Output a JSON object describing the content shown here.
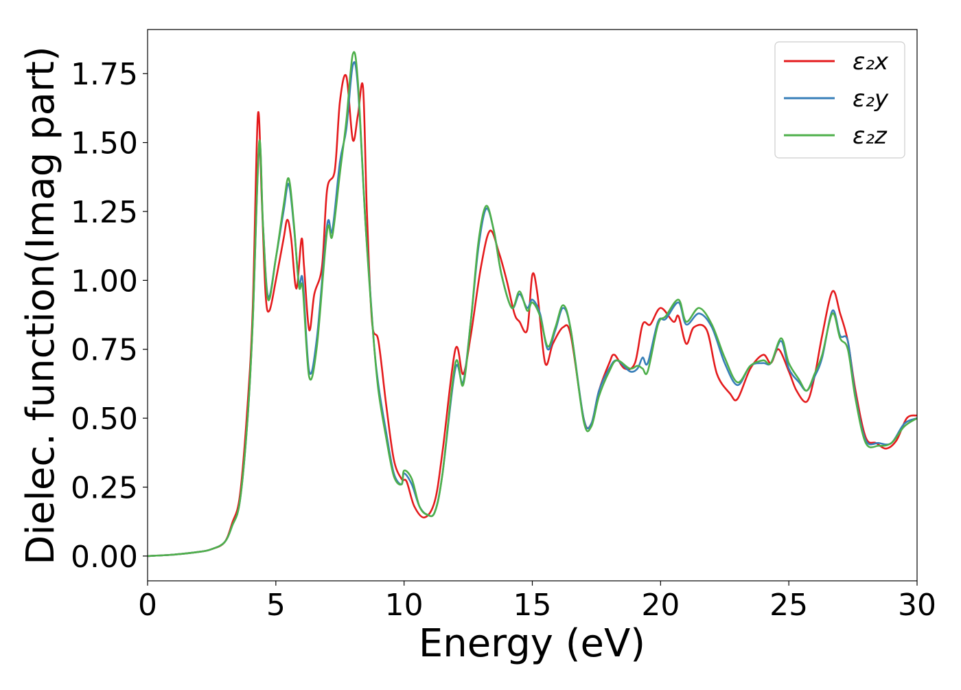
{
  "chart_data": {
    "type": "line",
    "xlabel": "Energy (eV)",
    "ylabel": "Dielec. function(Imag part)",
    "xlim": [
      0,
      30
    ],
    "ylim": [
      -0.09,
      1.91
    ],
    "xticks": [
      "0",
      "5",
      "10",
      "15",
      "20",
      "25",
      "30"
    ],
    "yticks": [
      "0.00",
      "0.25",
      "0.50",
      "0.75",
      "1.00",
      "1.25",
      "1.50",
      "1.75"
    ],
    "grid": false,
    "legend_position": "top-right",
    "series": [
      {
        "name": "ε₂x",
        "color": "#e41a1c",
        "points": [
          [
            0,
            0.0
          ],
          [
            1,
            0.005
          ],
          [
            2,
            0.015
          ],
          [
            2.5,
            0.025
          ],
          [
            3,
            0.05
          ],
          [
            3.3,
            0.12
          ],
          [
            3.6,
            0.22
          ],
          [
            3.9,
            0.55
          ],
          [
            4.1,
            0.9
          ],
          [
            4.3,
            1.6
          ],
          [
            4.45,
            1.3
          ],
          [
            4.6,
            0.95
          ],
          [
            4.75,
            0.89
          ],
          [
            5.0,
            1.0
          ],
          [
            5.3,
            1.15
          ],
          [
            5.45,
            1.22
          ],
          [
            5.6,
            1.15
          ],
          [
            5.8,
            0.97
          ],
          [
            6.0,
            1.15
          ],
          [
            6.1,
            1.05
          ],
          [
            6.3,
            0.82
          ],
          [
            6.5,
            0.95
          ],
          [
            6.8,
            1.05
          ],
          [
            7.0,
            1.33
          ],
          [
            7.3,
            1.4
          ],
          [
            7.5,
            1.65
          ],
          [
            7.75,
            1.74
          ],
          [
            8.0,
            1.51
          ],
          [
            8.2,
            1.6
          ],
          [
            8.4,
            1.7
          ],
          [
            8.55,
            1.25
          ],
          [
            8.75,
            0.85
          ],
          [
            9.0,
            0.78
          ],
          [
            9.3,
            0.55
          ],
          [
            9.6,
            0.35
          ],
          [
            9.9,
            0.28
          ],
          [
            10.1,
            0.27
          ],
          [
            10.4,
            0.18
          ],
          [
            10.8,
            0.14
          ],
          [
            11.2,
            0.2
          ],
          [
            11.5,
            0.38
          ],
          [
            12.0,
            0.75
          ],
          [
            12.3,
            0.66
          ],
          [
            12.6,
            0.8
          ],
          [
            13.0,
            1.05
          ],
          [
            13.35,
            1.18
          ],
          [
            13.7,
            1.1
          ],
          [
            14.0,
            1.0
          ],
          [
            14.3,
            0.88
          ],
          [
            14.5,
            0.85
          ],
          [
            14.8,
            0.82
          ],
          [
            15.0,
            1.02
          ],
          [
            15.2,
            0.95
          ],
          [
            15.5,
            0.7
          ],
          [
            15.8,
            0.77
          ],
          [
            16.2,
            0.83
          ],
          [
            16.5,
            0.8
          ],
          [
            17.0,
            0.5
          ],
          [
            17.3,
            0.48
          ],
          [
            17.6,
            0.6
          ],
          [
            18.0,
            0.7
          ],
          [
            18.2,
            0.73
          ],
          [
            18.6,
            0.68
          ],
          [
            19.0,
            0.7
          ],
          [
            19.3,
            0.84
          ],
          [
            19.6,
            0.84
          ],
          [
            20.0,
            0.9
          ],
          [
            20.5,
            0.85
          ],
          [
            20.7,
            0.87
          ],
          [
            21.0,
            0.77
          ],
          [
            21.3,
            0.83
          ],
          [
            21.8,
            0.82
          ],
          [
            22.2,
            0.66
          ],
          [
            22.7,
            0.59
          ],
          [
            23.0,
            0.57
          ],
          [
            23.5,
            0.68
          ],
          [
            24.0,
            0.73
          ],
          [
            24.3,
            0.7
          ],
          [
            24.6,
            0.75
          ],
          [
            25.0,
            0.67
          ],
          [
            25.3,
            0.6
          ],
          [
            25.7,
            0.56
          ],
          [
            26.0,
            0.65
          ],
          [
            26.3,
            0.8
          ],
          [
            26.7,
            0.96
          ],
          [
            27.0,
            0.88
          ],
          [
            27.3,
            0.78
          ],
          [
            27.6,
            0.6
          ],
          [
            28.0,
            0.43
          ],
          [
            28.4,
            0.41
          ],
          [
            28.8,
            0.39
          ],
          [
            29.2,
            0.42
          ],
          [
            29.6,
            0.5
          ],
          [
            30.0,
            0.51
          ]
        ]
      },
      {
        "name": "ε₂y",
        "color": "#377eb8",
        "points": [
          [
            0,
            0.0
          ],
          [
            1,
            0.005
          ],
          [
            2,
            0.015
          ],
          [
            2.5,
            0.025
          ],
          [
            3,
            0.05
          ],
          [
            3.3,
            0.11
          ],
          [
            3.6,
            0.2
          ],
          [
            3.9,
            0.5
          ],
          [
            4.1,
            0.85
          ],
          [
            4.35,
            1.49
          ],
          [
            4.5,
            1.2
          ],
          [
            4.7,
            0.94
          ],
          [
            5.0,
            1.08
          ],
          [
            5.3,
            1.25
          ],
          [
            5.5,
            1.35
          ],
          [
            5.7,
            1.2
          ],
          [
            5.9,
            0.99
          ],
          [
            6.05,
            1.0
          ],
          [
            6.3,
            0.67
          ],
          [
            6.6,
            0.79
          ],
          [
            7.0,
            1.2
          ],
          [
            7.2,
            1.18
          ],
          [
            7.5,
            1.43
          ],
          [
            7.75,
            1.55
          ],
          [
            8.0,
            1.78
          ],
          [
            8.2,
            1.7
          ],
          [
            8.5,
            1.2
          ],
          [
            8.8,
            0.8
          ],
          [
            9.0,
            0.62
          ],
          [
            9.3,
            0.45
          ],
          [
            9.6,
            0.3
          ],
          [
            9.9,
            0.26
          ],
          [
            10.0,
            0.3
          ],
          [
            10.3,
            0.26
          ],
          [
            10.6,
            0.18
          ],
          [
            10.9,
            0.15
          ],
          [
            11.2,
            0.16
          ],
          [
            11.5,
            0.3
          ],
          [
            12.0,
            0.68
          ],
          [
            12.3,
            0.63
          ],
          [
            12.6,
            0.85
          ],
          [
            12.9,
            1.12
          ],
          [
            13.2,
            1.26
          ],
          [
            13.5,
            1.18
          ],
          [
            13.8,
            1.02
          ],
          [
            14.2,
            0.9
          ],
          [
            14.5,
            0.95
          ],
          [
            14.8,
            0.9
          ],
          [
            15.0,
            0.93
          ],
          [
            15.3,
            0.88
          ],
          [
            15.6,
            0.75
          ],
          [
            15.9,
            0.82
          ],
          [
            16.2,
            0.9
          ],
          [
            16.5,
            0.82
          ],
          [
            17.0,
            0.5
          ],
          [
            17.3,
            0.48
          ],
          [
            17.6,
            0.6
          ],
          [
            18.0,
            0.68
          ],
          [
            18.3,
            0.71
          ],
          [
            18.8,
            0.67
          ],
          [
            19.1,
            0.68
          ],
          [
            19.3,
            0.72
          ],
          [
            19.5,
            0.7
          ],
          [
            19.9,
            0.85
          ],
          [
            20.2,
            0.86
          ],
          [
            20.7,
            0.92
          ],
          [
            21.0,
            0.84
          ],
          [
            21.5,
            0.88
          ],
          [
            22.0,
            0.83
          ],
          [
            22.5,
            0.7
          ],
          [
            23.0,
            0.62
          ],
          [
            23.5,
            0.69
          ],
          [
            24.0,
            0.7
          ],
          [
            24.3,
            0.7
          ],
          [
            24.7,
            0.78
          ],
          [
            25.0,
            0.68
          ],
          [
            25.4,
            0.63
          ],
          [
            25.7,
            0.6
          ],
          [
            26.0,
            0.65
          ],
          [
            26.3,
            0.72
          ],
          [
            26.7,
            0.89
          ],
          [
            27.0,
            0.8
          ],
          [
            27.3,
            0.78
          ],
          [
            27.6,
            0.58
          ],
          [
            28.0,
            0.42
          ],
          [
            28.5,
            0.41
          ],
          [
            29.0,
            0.41
          ],
          [
            29.5,
            0.48
          ],
          [
            30.0,
            0.5
          ]
        ]
      },
      {
        "name": "ε₂z",
        "color": "#4daf4a",
        "points": [
          [
            0,
            0.0
          ],
          [
            1,
            0.005
          ],
          [
            2,
            0.015
          ],
          [
            2.5,
            0.025
          ],
          [
            3,
            0.05
          ],
          [
            3.3,
            0.11
          ],
          [
            3.6,
            0.2
          ],
          [
            3.9,
            0.5
          ],
          [
            4.1,
            0.85
          ],
          [
            4.35,
            1.5
          ],
          [
            4.5,
            1.2
          ],
          [
            4.7,
            0.93
          ],
          [
            5.0,
            1.08
          ],
          [
            5.3,
            1.27
          ],
          [
            5.5,
            1.37
          ],
          [
            5.7,
            1.21
          ],
          [
            5.9,
            0.98
          ],
          [
            6.05,
            0.97
          ],
          [
            6.3,
            0.65
          ],
          [
            6.6,
            0.76
          ],
          [
            7.0,
            1.18
          ],
          [
            7.2,
            1.16
          ],
          [
            7.5,
            1.39
          ],
          [
            7.75,
            1.58
          ],
          [
            8.0,
            1.82
          ],
          [
            8.2,
            1.72
          ],
          [
            8.5,
            1.2
          ],
          [
            8.8,
            0.8
          ],
          [
            9.0,
            0.6
          ],
          [
            9.3,
            0.43
          ],
          [
            9.6,
            0.29
          ],
          [
            9.9,
            0.26
          ],
          [
            10.0,
            0.31
          ],
          [
            10.3,
            0.28
          ],
          [
            10.6,
            0.18
          ],
          [
            10.9,
            0.15
          ],
          [
            11.2,
            0.16
          ],
          [
            11.5,
            0.3
          ],
          [
            12.0,
            0.7
          ],
          [
            12.3,
            0.62
          ],
          [
            12.6,
            0.85
          ],
          [
            12.9,
            1.14
          ],
          [
            13.2,
            1.27
          ],
          [
            13.5,
            1.18
          ],
          [
            13.8,
            1.02
          ],
          [
            14.2,
            0.9
          ],
          [
            14.5,
            0.96
          ],
          [
            14.8,
            0.89
          ],
          [
            15.0,
            0.92
          ],
          [
            15.3,
            0.87
          ],
          [
            15.6,
            0.76
          ],
          [
            15.9,
            0.83
          ],
          [
            16.2,
            0.91
          ],
          [
            16.5,
            0.82
          ],
          [
            17.0,
            0.49
          ],
          [
            17.3,
            0.47
          ],
          [
            17.6,
            0.58
          ],
          [
            18.0,
            0.67
          ],
          [
            18.3,
            0.71
          ],
          [
            18.8,
            0.68
          ],
          [
            19.1,
            0.69
          ],
          [
            19.3,
            0.68
          ],
          [
            19.5,
            0.67
          ],
          [
            19.9,
            0.84
          ],
          [
            20.2,
            0.87
          ],
          [
            20.7,
            0.93
          ],
          [
            21.0,
            0.85
          ],
          [
            21.5,
            0.9
          ],
          [
            22.0,
            0.84
          ],
          [
            22.5,
            0.72
          ],
          [
            23.0,
            0.63
          ],
          [
            23.5,
            0.69
          ],
          [
            24.0,
            0.71
          ],
          [
            24.3,
            0.7
          ],
          [
            24.7,
            0.79
          ],
          [
            25.0,
            0.7
          ],
          [
            25.4,
            0.64
          ],
          [
            25.7,
            0.6
          ],
          [
            26.0,
            0.66
          ],
          [
            26.3,
            0.73
          ],
          [
            26.7,
            0.88
          ],
          [
            27.0,
            0.79
          ],
          [
            27.3,
            0.75
          ],
          [
            27.6,
            0.57
          ],
          [
            28.0,
            0.41
          ],
          [
            28.5,
            0.4
          ],
          [
            29.0,
            0.41
          ],
          [
            29.5,
            0.47
          ],
          [
            30.0,
            0.5
          ]
        ]
      }
    ]
  }
}
